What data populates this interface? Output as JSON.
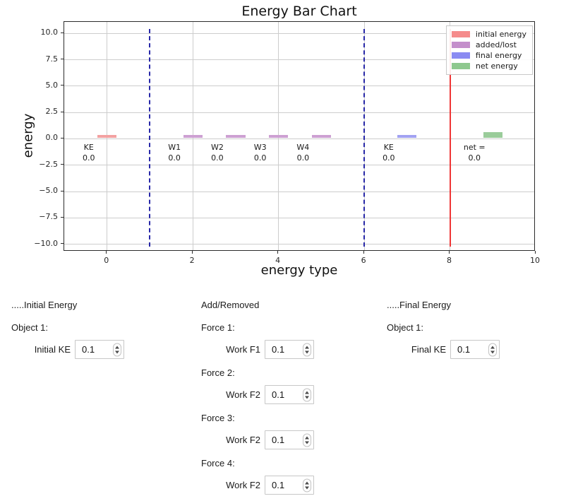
{
  "chart_data": {
    "type": "bar",
    "title": "Energy Bar Chart",
    "xlabel": "energy type",
    "ylabel": "energy",
    "xlim": [
      -1,
      10
    ],
    "ylim": [
      -10.7,
      11.1
    ],
    "grid": true,
    "legend_position": "upper right",
    "x_tick_values": [
      0,
      2,
      4,
      6,
      8,
      10
    ],
    "x_tick_labels": [
      "0",
      "2",
      "4",
      "6",
      "8",
      "10"
    ],
    "y_tick_values": [
      10.0,
      7.5,
      5.0,
      2.5,
      0.0,
      -2.5,
      -5.0,
      -7.5,
      -10.0
    ],
    "y_tick_labels": [
      "10.0",
      "7.5",
      "5.0",
      "2.5",
      "0.0",
      "−2.5",
      "−5.0",
      "−7.5",
      "−10.0"
    ],
    "bar_width": 0.4,
    "bars": [
      {
        "x": 0,
        "name": "KE",
        "value": 0.0,
        "value_label": "0.0",
        "series": "initial energy",
        "color": "#f3a1a1",
        "display_height": 0.3
      },
      {
        "x": 2,
        "name": "W1",
        "value": 0.0,
        "value_label": "0.0",
        "series": "added/lost",
        "color": "#cda0d2",
        "display_height": 0.3
      },
      {
        "x": 3,
        "name": "W2",
        "value": 0.0,
        "value_label": "0.0",
        "series": "added/lost",
        "color": "#cda0d2",
        "display_height": 0.3
      },
      {
        "x": 4,
        "name": "W3",
        "value": 0.0,
        "value_label": "0.0",
        "series": "added/lost",
        "color": "#cda0d2",
        "display_height": 0.3
      },
      {
        "x": 5,
        "name": "W4",
        "value": 0.0,
        "value_label": "0.0",
        "series": "added/lost",
        "color": "#cda0d2",
        "display_height": 0.3
      },
      {
        "x": 7,
        "name": "KE",
        "value": 0.0,
        "value_label": "0.0",
        "series": "final energy",
        "color": "#a2a2f2",
        "display_height": 0.3
      },
      {
        "x": 9,
        "name": "net =",
        "value": 0.0,
        "value_label": "0.0",
        "series": "net energy",
        "color": "#9acc9a",
        "display_height": 0.55
      }
    ],
    "vlines": [
      {
        "x": 1,
        "style": "dashed",
        "color": "#2828a8"
      },
      {
        "x": 6,
        "style": "dashed",
        "color": "#2828a8"
      },
      {
        "x": 8,
        "style": "solid",
        "color": "#ef3535"
      }
    ],
    "legend_entries": [
      {
        "label": "initial energy",
        "color": "#f58b8b"
      },
      {
        "label": "added/lost",
        "color": "#c48fcb"
      },
      {
        "label": "final energy",
        "color": "#8b8bf2"
      },
      {
        "label": "net energy",
        "color": "#8ec88e"
      }
    ]
  },
  "controls": {
    "columns": [
      {
        "id": "initial-energy",
        "header": ".....Initial Energy",
        "groups": [
          {
            "label": "Object 1:",
            "rows": [
              {
                "label": "Initial KE",
                "value": "0.1"
              }
            ]
          }
        ]
      },
      {
        "id": "add-removed",
        "header": "Add/Removed",
        "groups": [
          {
            "label": "Force 1:",
            "rows": [
              {
                "label": "Work F1",
                "value": "0.1"
              }
            ]
          },
          {
            "label": "Force 2:",
            "rows": [
              {
                "label": "Work F2",
                "value": "0.1"
              }
            ]
          },
          {
            "label": "Force 3:",
            "rows": [
              {
                "label": "Work F2",
                "value": "0.1"
              }
            ]
          },
          {
            "label": "Force 4:",
            "rows": [
              {
                "label": "Work F2",
                "value": "0.1"
              }
            ]
          }
        ]
      },
      {
        "id": "final-energy",
        "header": ".....Final Energy",
        "groups": [
          {
            "label": "Object 1:",
            "rows": [
              {
                "label": "Final KE",
                "value": "0.1"
              }
            ]
          }
        ]
      }
    ]
  }
}
